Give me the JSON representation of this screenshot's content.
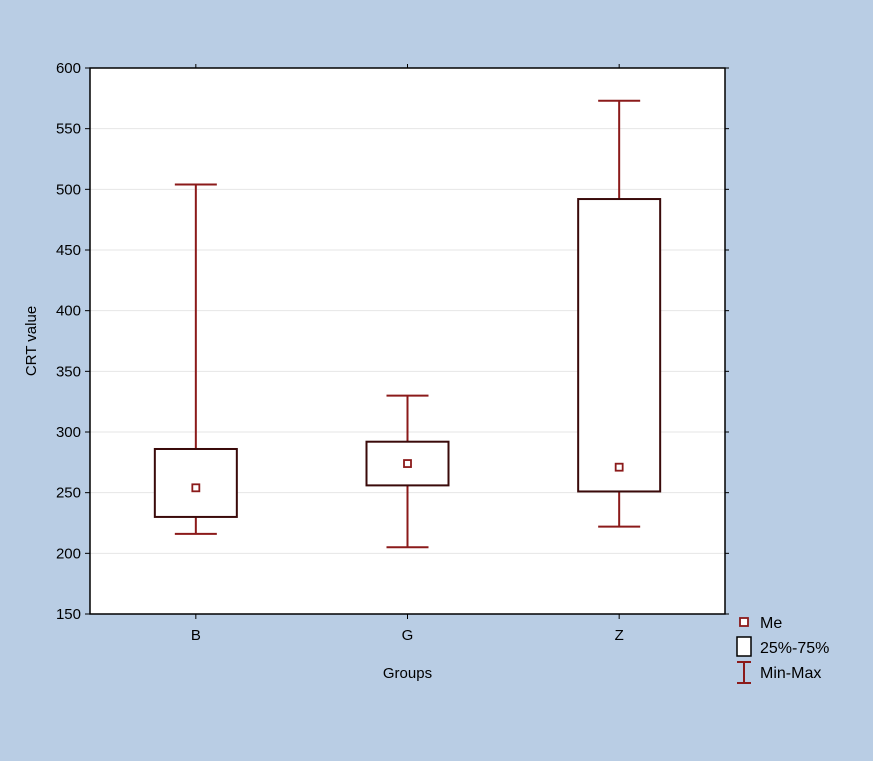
{
  "chart_data": {
    "type": "boxplot",
    "xlabel": "Groups",
    "ylabel": "CRT value",
    "ylim": [
      150,
      600
    ],
    "yticks": [
      150,
      200,
      250,
      300,
      350,
      400,
      450,
      500,
      550,
      600
    ],
    "ytick_labels": [
      "150",
      "200",
      "250",
      "300",
      "350",
      "400",
      "450",
      "500",
      "550",
      "600"
    ],
    "categories": [
      "B",
      "G",
      "Z"
    ],
    "series": [
      {
        "category": "B",
        "min": 216,
        "q1": 230,
        "median": 254,
        "q3": 286,
        "max": 504
      },
      {
        "category": "G",
        "min": 205,
        "q1": 256,
        "median": 274,
        "q3": 292,
        "max": 330
      },
      {
        "category": "Z",
        "min": 222,
        "q1": 251,
        "median": 271,
        "q3": 492,
        "max": 573
      }
    ],
    "grid": true,
    "legend_position": "bottom-right",
    "legend": [
      {
        "symbol": "median-square",
        "label": "Me"
      },
      {
        "symbol": "box",
        "label": "25%-75%"
      },
      {
        "symbol": "whisker",
        "label": "Min-Max"
      }
    ],
    "colors": {
      "background": "#b9cde4",
      "plot_area": "#ffffff",
      "whisker": "#8b1a1a",
      "box": "#3a0a0a",
      "gridline": "#e6e6e6"
    }
  }
}
